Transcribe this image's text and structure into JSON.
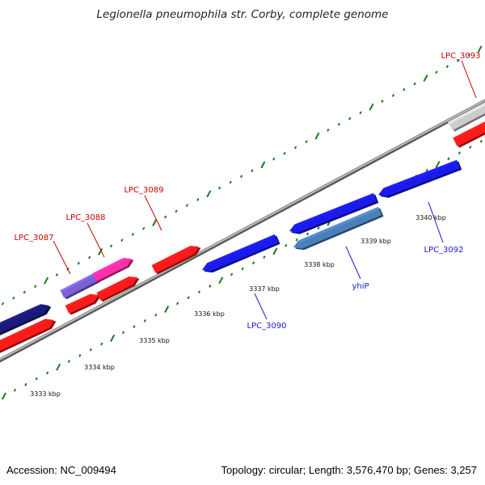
{
  "title": "Legionella pneumophila str. Corby, complete genome",
  "footer": {
    "accession": "Accession: NC_009494",
    "summary": "Topology: circular; Length: 3,576,470 bp; Genes: 3,257"
  },
  "colors": {
    "forward_label": "#cc0000",
    "reverse_label": "#1a1acc",
    "backbone": "#8c8c8c",
    "tick": "#1a7a1a"
  },
  "scale": {
    "unit": "kbp",
    "labels": [
      "3333 kbp",
      "3334 kbp",
      "3335 kbp",
      "3336 kbp",
      "3337 kbp",
      "3338 kbp",
      "3339 kbp",
      "3340 kbp"
    ]
  },
  "genes": [
    {
      "name": "LPC_3087",
      "strand": "+"
    },
    {
      "name": "LPC_3088",
      "strand": "+"
    },
    {
      "name": "LPC_3089",
      "strand": "+"
    },
    {
      "name": "LPC_3090",
      "strand": "-"
    },
    {
      "name": "yhiP",
      "strand": "-"
    },
    {
      "name": "LPC_3092",
      "strand": "-"
    },
    {
      "name": "LPC_3093",
      "strand": "+"
    }
  ]
}
